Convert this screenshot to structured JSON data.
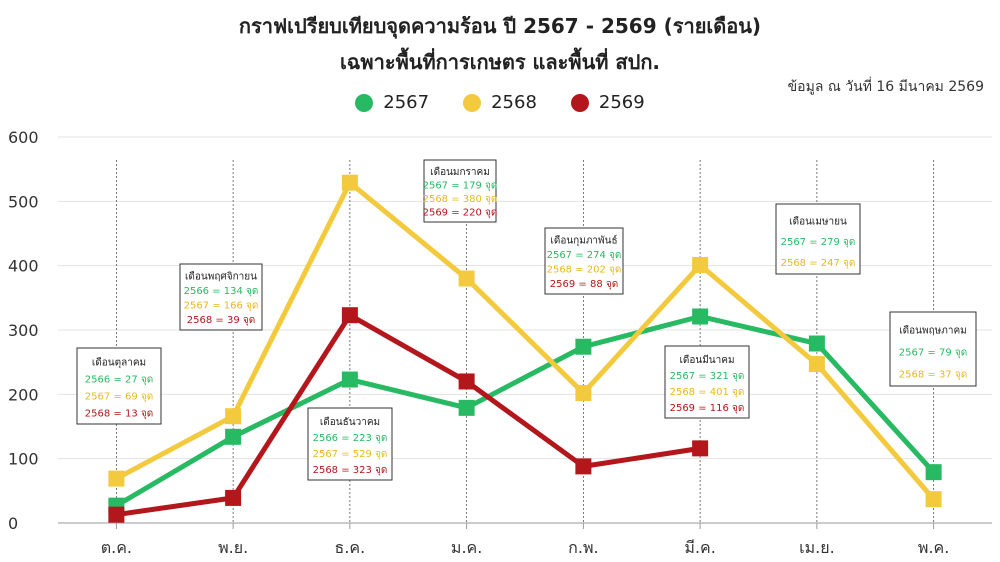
{
  "title_line1": "กราฟเปรียบเทียบจุดความร้อน ปี 2567 - 2569 (รายเดือน)",
  "title_line2": "เฉพาะพื้นที่การเกษตร และพื้นที่ สปก.",
  "note": "ข้อมูล ณ วันที่ 16 มีนาคม 2569",
  "colors": {
    "s2567": "#27ba62",
    "s2568": "#f3c93e",
    "s2569": "#b3161b"
  },
  "chart_data": {
    "type": "line",
    "categories": [
      "ต.ค.",
      "พ.ย.",
      "ธ.ค.",
      "ม.ค.",
      "ก.พ.",
      "มี.ค.",
      "เม.ย.",
      "พ.ค."
    ],
    "ylim": [
      0,
      600
    ],
    "yticks": [
      0,
      100,
      200,
      300,
      400,
      500,
      600
    ],
    "grid": true,
    "legend_position": "top-center",
    "series": [
      {
        "name": "2567",
        "color": "#27ba62",
        "values": [
          27,
          134,
          223,
          179,
          274,
          321,
          279,
          79
        ]
      },
      {
        "name": "2568",
        "color": "#f3c93e",
        "values": [
          69,
          166,
          529,
          380,
          202,
          401,
          247,
          37
        ]
      },
      {
        "name": "2569",
        "color": "#b3161b",
        "values": [
          13,
          39,
          323,
          220,
          88,
          116,
          null,
          null
        ]
      }
    ],
    "annotations": [
      {
        "category": "ต.ค.",
        "title": "เดือนตุลาคม",
        "lines": [
          {
            "text": "2566 = 27 จุด",
            "color": "#27ba62"
          },
          {
            "text": "2567 = 69 จุด",
            "color": "#e8b820"
          },
          {
            "text": "2568 = 13 จุด",
            "color": "#b3161b"
          }
        ]
      },
      {
        "category": "พ.ย.",
        "title": "เดือนพฤศจิกายน",
        "lines": [
          {
            "text": "2566 = 134 จุด",
            "color": "#27ba62"
          },
          {
            "text": "2567 = 166 จุด",
            "color": "#e8b820"
          },
          {
            "text": "2568 = 39 จุด",
            "color": "#b3161b"
          }
        ]
      },
      {
        "category": "ธ.ค.",
        "title": "เดือนธันวาคม",
        "lines": [
          {
            "text": "2566 = 223 จุด",
            "color": "#27ba62"
          },
          {
            "text": "2567 = 529 จุด",
            "color": "#e8b820"
          },
          {
            "text": "2568 = 323 จุด",
            "color": "#b3161b"
          }
        ]
      },
      {
        "category": "ม.ค.",
        "title": "เดือนมกราคม",
        "lines": [
          {
            "text": "2567 = 179 จุด",
            "color": "#27ba62"
          },
          {
            "text": "2568 = 380 จุด",
            "color": "#e8b820"
          },
          {
            "text": "2569 = 220 จุด",
            "color": "#b3161b"
          }
        ]
      },
      {
        "category": "ก.พ.",
        "title": "เดือนกุมภาพันธ์",
        "lines": [
          {
            "text": "2567 = 274 จุด",
            "color": "#27ba62"
          },
          {
            "text": "2568 = 202 จุด",
            "color": "#e8b820"
          },
          {
            "text": "2569 = 88 จุด",
            "color": "#b3161b"
          }
        ]
      },
      {
        "category": "มี.ค.",
        "title": "เดือนมีนาคม",
        "lines": [
          {
            "text": "2567 = 321 จุด",
            "color": "#27ba62"
          },
          {
            "text": "2568 = 401 จุด",
            "color": "#e8b820"
          },
          {
            "text": "2569 = 116 จุด",
            "color": "#b3161b"
          }
        ]
      },
      {
        "category": "เม.ย.",
        "title": "เดือนเมษายน",
        "lines": [
          {
            "text": "2567 = 279 จุด",
            "color": "#27ba62"
          },
          {
            "text": "2568 = 247 จุด",
            "color": "#e8b820"
          }
        ]
      },
      {
        "category": "พ.ค.",
        "title": "เดือนพฤษภาคม",
        "lines": [
          {
            "text": "2567 = 79 จุด",
            "color": "#27ba62"
          },
          {
            "text": "2568 = 37 จุด",
            "color": "#e8b820"
          }
        ]
      }
    ]
  }
}
